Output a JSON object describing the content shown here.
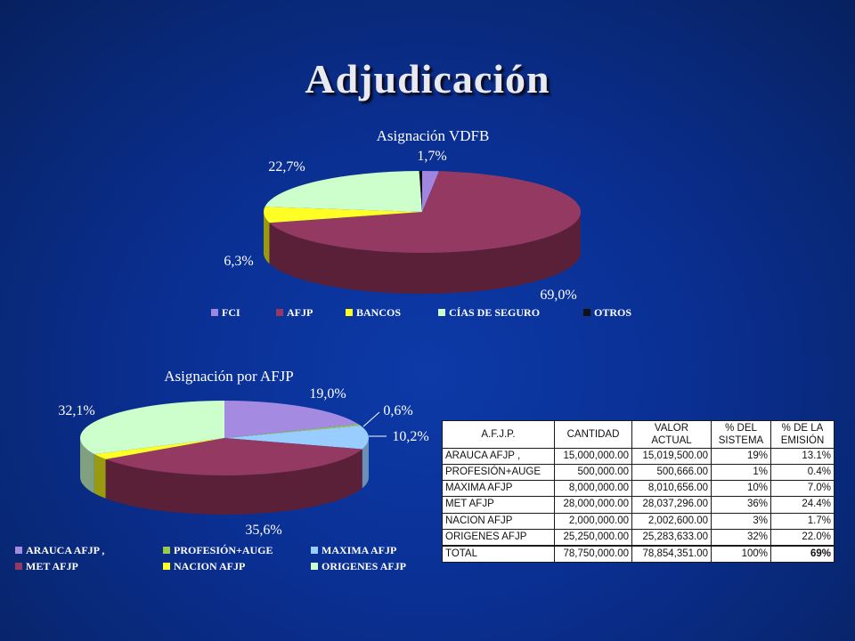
{
  "slide": {
    "title": "Adjudicación"
  },
  "chart_data": [
    {
      "type": "pie",
      "title": "Asignación VDFB",
      "categories": [
        "FCI",
        "AFJP",
        "BANCOS",
        "CÍAS DE SEGURO",
        "OTROS"
      ],
      "values": [
        1.7,
        69.0,
        6.3,
        22.7,
        0.3
      ],
      "data_labels": [
        "1,7%",
        "69,0%",
        "6,3%",
        "22,7%",
        ""
      ],
      "colors": [
        "#a086e0",
        "#943a62",
        "#ffff26",
        "#ccffcc",
        "#111111"
      ],
      "side_colors": [
        "#6a55a0",
        "#5a2038",
        "#9a9a10",
        "#80a080",
        "#000000"
      ],
      "legend_position": "bottom"
    },
    {
      "type": "pie",
      "title": "Asignación por AFJP",
      "categories": [
        "ARAUCA AFJP ,",
        "PROFESIÓN+AUGE",
        "MAXIMA AFJP",
        "MET AFJP",
        "NACION AFJP",
        "ORIGENES AFJP"
      ],
      "values": [
        19.0,
        0.6,
        10.2,
        35.6,
        2.5,
        32.1
      ],
      "data_labels": [
        "19,0%",
        "0,6%",
        "10,2%",
        "35,6%",
        "",
        "32,1%"
      ],
      "colors": [
        "#a48ae0",
        "#99cc44",
        "#99ccff",
        "#943a62",
        "#ffff26",
        "#ccffcc"
      ],
      "side_colors": [
        "#6a55a0",
        "#5e8a20",
        "#6a90b8",
        "#5a2038",
        "#9a9a10",
        "#80a080"
      ],
      "legend_position": "bottom"
    }
  ],
  "table": {
    "headers": [
      "A.F.J.P.",
      "CANTIDAD",
      "VALOR ACTUAL",
      "% DEL SISTEMA",
      "% DE LA EMISIÓN"
    ],
    "rows": [
      [
        "ARAUCA AFJP ,",
        "15,000,000.00",
        "15,019,500.00",
        "19%",
        "13.1%"
      ],
      [
        "PROFESIÓN+AUGE",
        "500,000.00",
        "500,666.00",
        "1%",
        "0.4%"
      ],
      [
        "MAXIMA AFJP",
        "8,000,000.00",
        "8,010,656.00",
        "10%",
        "7.0%"
      ],
      [
        "MET AFJP",
        "28,000,000.00",
        "28,037,296.00",
        "36%",
        "24.4%"
      ],
      [
        "NACION AFJP",
        "2,000,000.00",
        "2,002,600.00",
        "3%",
        "1.7%"
      ],
      [
        "ORIGENES AFJP",
        "25,250,000.00",
        "25,283,633.00",
        "32%",
        "22.0%"
      ]
    ],
    "total": [
      "TOTAL",
      "78,750,000.00",
      "78,854,351.00",
      "100%",
      "69%"
    ]
  }
}
